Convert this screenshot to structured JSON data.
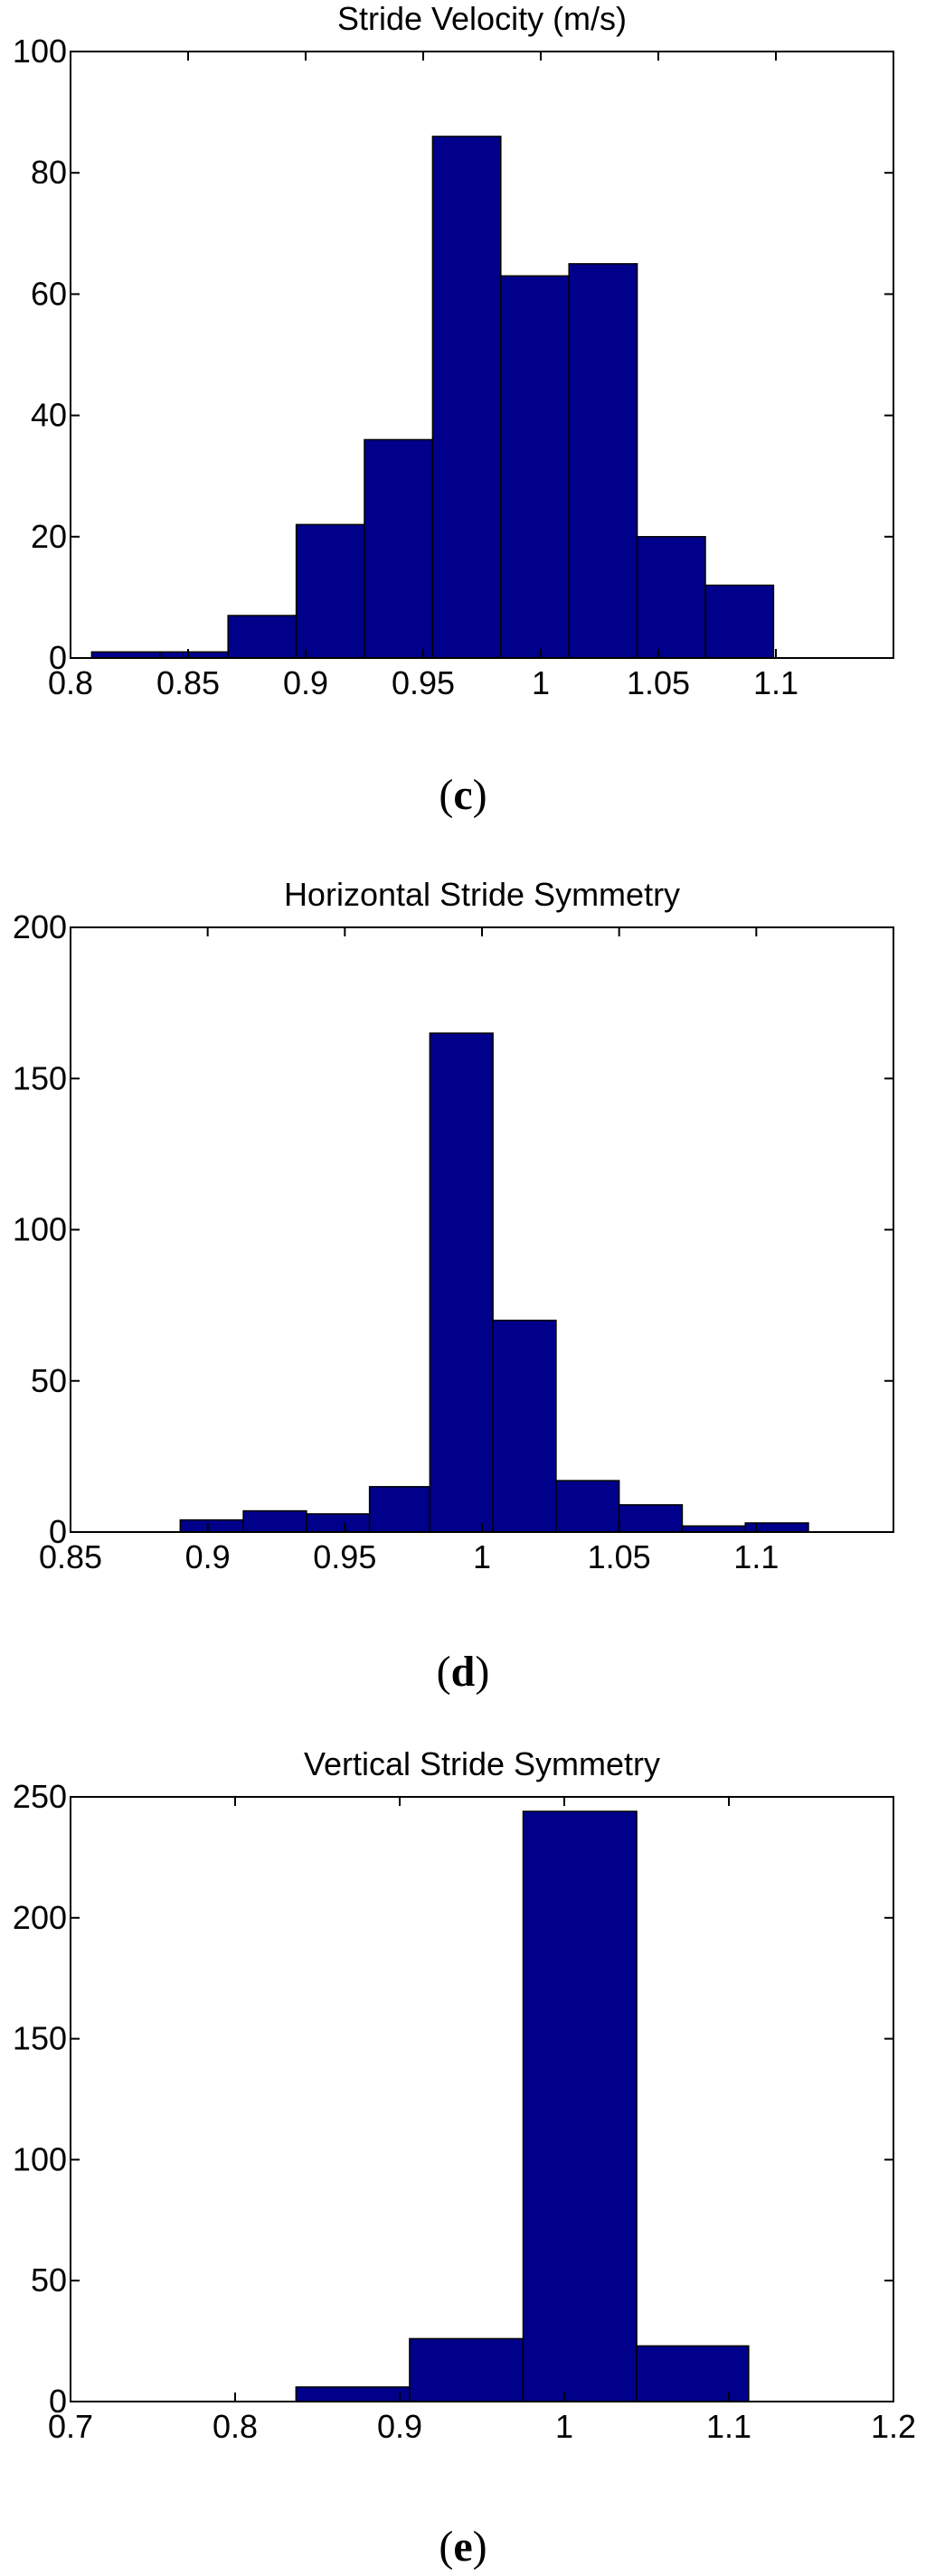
{
  "bar_color": "#00008b",
  "chart_data": [
    {
      "type": "bar",
      "title": "Stride Velocity (m/s)",
      "xlabel": "",
      "ylabel": "",
      "xlim": [
        0.8,
        1.15
      ],
      "ylim": [
        0,
        100
      ],
      "xticks": [
        "0.8",
        "0.85",
        "0.9",
        "0.95",
        "1",
        "1.05",
        "1.1"
      ],
      "yticks": [
        "0",
        "20",
        "40",
        "60",
        "80",
        "100"
      ],
      "bins": [
        {
          "x0": 0.809,
          "x1": 0.838,
          "value": 1
        },
        {
          "x0": 0.838,
          "x1": 0.867,
          "value": 1
        },
        {
          "x0": 0.867,
          "x1": 0.896,
          "value": 7
        },
        {
          "x0": 0.896,
          "x1": 0.925,
          "value": 22
        },
        {
          "x0": 0.925,
          "x1": 0.954,
          "value": 36
        },
        {
          "x0": 0.954,
          "x1": 0.983,
          "value": 86
        },
        {
          "x0": 0.983,
          "x1": 1.012,
          "value": 63
        },
        {
          "x0": 1.012,
          "x1": 1.041,
          "value": 65
        },
        {
          "x0": 1.041,
          "x1": 1.07,
          "value": 20
        },
        {
          "x0": 1.07,
          "x1": 1.099,
          "value": 12
        }
      ],
      "grid": false,
      "caption": "c"
    },
    {
      "type": "bar",
      "title": "Horizontal Stride Symmetry",
      "xlabel": "",
      "ylabel": "",
      "xlim": [
        0.85,
        1.15
      ],
      "ylim": [
        0,
        200
      ],
      "xticks": [
        "0.85",
        "0.9",
        "0.95",
        "1",
        "1.05",
        "1.1"
      ],
      "yticks": [
        "0",
        "50",
        "100",
        "150",
        "200"
      ],
      "bins": [
        {
          "x0": 0.89,
          "x1": 0.913,
          "value": 4
        },
        {
          "x0": 0.913,
          "x1": 0.936,
          "value": 7
        },
        {
          "x0": 0.936,
          "x1": 0.959,
          "value": 6
        },
        {
          "x0": 0.959,
          "x1": 0.981,
          "value": 15
        },
        {
          "x0": 0.981,
          "x1": 1.004,
          "value": 165
        },
        {
          "x0": 1.004,
          "x1": 1.027,
          "value": 70
        },
        {
          "x0": 1.027,
          "x1": 1.05,
          "value": 17
        },
        {
          "x0": 1.05,
          "x1": 1.073,
          "value": 9
        },
        {
          "x0": 1.073,
          "x1": 1.096,
          "value": 2
        },
        {
          "x0": 1.096,
          "x1": 1.119,
          "value": 3
        }
      ],
      "grid": false,
      "caption": "d"
    },
    {
      "type": "bar",
      "title": "Vertical Stride Symmetry",
      "xlabel": "",
      "ylabel": "",
      "xlim": [
        0.7,
        1.2
      ],
      "ylim": [
        0,
        250
      ],
      "xticks": [
        "0.7",
        "0.8",
        "0.9",
        "1",
        "1.1",
        "1.2"
      ],
      "yticks": [
        "0",
        "50",
        "100",
        "150",
        "200",
        "250"
      ],
      "bins": [
        {
          "x0": 0.837,
          "x1": 0.906,
          "value": 6
        },
        {
          "x0": 0.906,
          "x1": 0.975,
          "value": 26
        },
        {
          "x0": 0.975,
          "x1": 1.044,
          "value": 244
        },
        {
          "x0": 1.044,
          "x1": 1.112,
          "value": 23
        }
      ],
      "grid": false,
      "caption": "e"
    }
  ]
}
